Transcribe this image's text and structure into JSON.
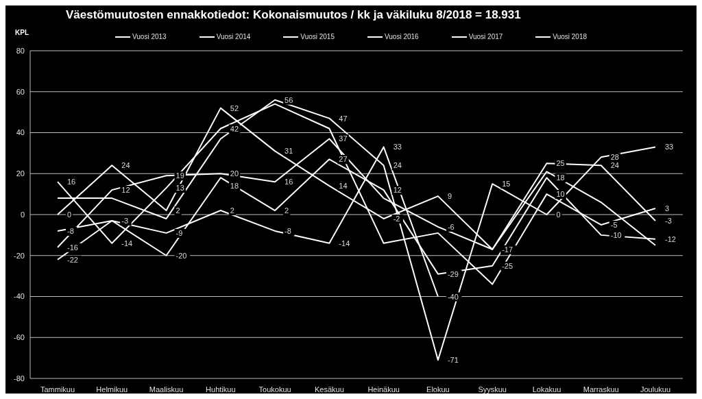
{
  "chart_data": {
    "type": "line",
    "title": "Väestömuutosten ennakkotiedot: Kokonaismuutos / kk ja väkiluku 8/2018 = 18.931",
    "ylabel": "KPL",
    "categories": [
      "Tammikuu",
      "Helmikuu",
      "Maaliskuu",
      "Huhtikuu",
      "Toukokuu",
      "Kesäkuu",
      "Heinäkuu",
      "Elokuu",
      "Syyskuu",
      "Lokakuu",
      "Marraskuu",
      "Joulukuu"
    ],
    "series": [
      {
        "name": "Vuosi 2013",
        "color": "#ffffff",
        "values": [
          0,
          24,
          2,
          52,
          31,
          14,
          -2,
          9,
          -17,
          25,
          24,
          -3
        ],
        "value_labels": [
          "0",
          "24",
          "2",
          "52",
          "31",
          "14",
          "-2",
          "9",
          "-17",
          "25",
          "24",
          "-3"
        ]
      },
      {
        "name": "Vuosi 2014",
        "color": "#ffffff",
        "values": [
          -16,
          12,
          19,
          20,
          16,
          37,
          8,
          -6,
          -17,
          21,
          6,
          -15
        ],
        "value_labels": [
          "-16",
          "12",
          "19",
          "20",
          "16",
          "37",
          null,
          "-6",
          null,
          null,
          null,
          null
        ]
      },
      {
        "name": "Vuosi 2015",
        "color": "#ffffff",
        "values": [
          16,
          -14,
          13,
          42,
          54,
          42,
          -14,
          -9,
          -34,
          10,
          -5,
          3
        ],
        "value_labels": [
          "16",
          "-14",
          "13",
          "42",
          null,
          null,
          null,
          null,
          null,
          "10",
          "-5",
          "3"
        ]
      },
      {
        "name": "Vuosi 2016",
        "color": "#ffffff",
        "values": [
          8,
          8,
          -2,
          37,
          56,
          47,
          24,
          -71,
          15,
          0,
          28,
          33
        ],
        "value_labels": [
          null,
          null,
          null,
          null,
          "56",
          "47",
          "24",
          "-71",
          "15",
          "0",
          "28",
          "33"
        ]
      },
      {
        "name": "Vuosi 2017",
        "color": "#ffffff",
        "values": [
          -22,
          -3,
          -20,
          18,
          2,
          27,
          12,
          -29,
          -25,
          18,
          -10,
          -12
        ],
        "value_labels": [
          "-22",
          null,
          "-20",
          "18",
          "2",
          "27",
          "12",
          "-29",
          "-25",
          "18",
          "-10",
          "-12"
        ]
      },
      {
        "name": "Vuosi 2018",
        "color": "#ffffff",
        "values": [
          -8,
          -3,
          -9,
          2,
          -8,
          -14,
          33,
          -40,
          null,
          null,
          null,
          null
        ],
        "value_labels": [
          "-8",
          "-3",
          "-9",
          "2",
          "-8",
          "-14",
          "33",
          "-40",
          null,
          null,
          null,
          null
        ]
      }
    ],
    "ylim": [
      -80,
      80
    ],
    "yticks": [
      -80,
      -60,
      -40,
      -20,
      0,
      20,
      40,
      60,
      80
    ],
    "grid": "y",
    "legend": "top",
    "marker": "none",
    "line_style": "solid"
  }
}
